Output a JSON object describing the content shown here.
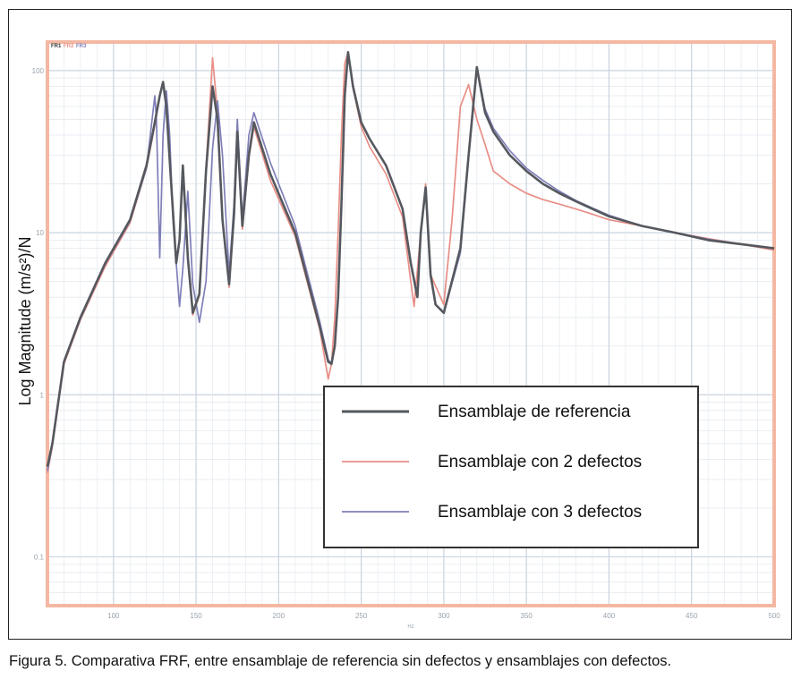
{
  "caption": "Figura 5. Comparativa FRF, entre ensamblaje de referencia sin defectos y ensamblajes con defectos.",
  "chart_data": {
    "type": "line",
    "ylabel": "Log Magnitude (m/s²)/N",
    "xlabel": "Hz",
    "yscale": "log",
    "xlim": [
      60,
      500
    ],
    "ylim": [
      0.05,
      150
    ],
    "x_ticks": [
      "100",
      "150",
      "200",
      "250",
      "300",
      "350",
      "400",
      "450",
      "500"
    ],
    "y_ticks": [
      "100",
      "10",
      "1",
      "0.1"
    ],
    "top_marks": [
      "FR1",
      "FR2",
      "FR3"
    ],
    "grid": true,
    "legend_position": "lower-right",
    "colors": {
      "frame": "#f4b7a2",
      "grid_major": "#c9d3de",
      "grid_minor": "#e4e9ef",
      "reference": "#55585e",
      "two_defects": "#e88e86",
      "three_defects": "#7f7fb8"
    },
    "series": [
      {
        "name": "Ensamblaje de referencia",
        "color": "#55585e",
        "x": [
          60,
          63,
          70,
          80,
          95,
          110,
          120,
          125,
          128,
          130,
          132,
          134,
          138,
          140,
          142,
          145,
          148,
          152,
          156,
          160,
          163,
          166,
          170,
          173,
          175,
          178,
          182,
          185,
          195,
          210,
          225,
          230,
          232,
          234,
          236,
          238,
          240,
          242,
          245,
          250,
          255,
          265,
          275,
          280,
          284,
          286,
          289,
          292,
          295,
          300,
          310,
          315,
          320,
          325,
          330,
          340,
          350,
          360,
          370,
          380,
          390,
          400,
          420,
          440,
          460,
          480,
          500
        ],
        "y": [
          0.36,
          0.5,
          1.6,
          3.0,
          6.5,
          12,
          26,
          48,
          70,
          85,
          60,
          28,
          6.5,
          9,
          26,
          7,
          3.2,
          4.2,
          24,
          80,
          50,
          12,
          4.8,
          13,
          42,
          11,
          30,
          48,
          23,
          10,
          2.6,
          1.6,
          1.55,
          2,
          4,
          15,
          70,
          130,
          80,
          48,
          38,
          26,
          14,
          6.5,
          4,
          10,
          19,
          5.5,
          3.6,
          3.2,
          8,
          30,
          105,
          55,
          42,
          30,
          24,
          20,
          17.5,
          15.6,
          14,
          12.6,
          11,
          10,
          9,
          8.5,
          8
        ]
      },
      {
        "name": "Ensamblaje con 2 defectos",
        "color": "#e88e86",
        "x": [
          60,
          63,
          70,
          80,
          95,
          110,
          120,
          125,
          128,
          130,
          132,
          134,
          138,
          140,
          142,
          145,
          148,
          152,
          156,
          160,
          163,
          166,
          170,
          173,
          175,
          178,
          182,
          185,
          195,
          210,
          225,
          230,
          232,
          234,
          236,
          238,
          240,
          242,
          245,
          250,
          255,
          265,
          275,
          280,
          282,
          286,
          289,
          292,
          300,
          305,
          310,
          315,
          320,
          325,
          330,
          340,
          350,
          360,
          370,
          380,
          390,
          400,
          420,
          440,
          460,
          480,
          500
        ],
        "y": [
          0.33,
          0.48,
          1.55,
          2.9,
          6.2,
          11.5,
          25,
          46,
          70,
          85,
          60,
          28,
          6.3,
          9,
          26,
          7,
          3.1,
          4.1,
          25,
          120,
          55,
          12,
          4.6,
          13,
          40,
          10.5,
          29,
          45,
          21,
          9.5,
          2.5,
          1.25,
          1.55,
          3,
          10,
          40,
          110,
          130,
          78,
          45,
          34,
          23,
          12.5,
          5,
          3.5,
          10,
          20,
          5.5,
          3.6,
          12,
          60,
          82,
          50,
          35,
          24,
          20,
          17.5,
          16,
          15,
          14,
          13,
          12,
          11,
          10,
          9.2,
          8.5,
          7.8
        ]
      },
      {
        "name": "Ensamblaje con 3 defectos",
        "color": "#7f7fb8",
        "x": [
          60,
          63,
          70,
          80,
          95,
          110,
          120,
          125,
          126,
          128,
          130,
          132,
          134,
          136,
          140,
          142,
          145,
          148,
          152,
          156,
          160,
          163,
          166,
          170,
          173,
          175,
          178,
          182,
          185,
          195,
          210,
          225,
          230,
          232,
          234,
          236,
          238,
          240,
          242,
          245,
          250,
          255,
          265,
          275,
          280,
          284,
          286,
          289,
          292,
          295,
          300,
          310,
          315,
          320,
          325,
          330,
          340,
          350,
          360,
          370,
          380,
          390,
          400,
          420,
          440,
          460,
          480,
          500
        ],
        "y": [
          0.34,
          0.49,
          1.58,
          2.95,
          6.4,
          11.8,
          25,
          70,
          50,
          7,
          40,
          75,
          40,
          12,
          3.5,
          6,
          18,
          4.8,
          2.8,
          5,
          33,
          65,
          30,
          5.5,
          15,
          50,
          12,
          40,
          55,
          27,
          11,
          2.8,
          1.65,
          1.55,
          2,
          4,
          15,
          68,
          128,
          80,
          48,
          38,
          26,
          14,
          6.5,
          4,
          10,
          18,
          5.5,
          3.6,
          3.2,
          7.5,
          29,
          105,
          58,
          44,
          32,
          25,
          21,
          18,
          15.8,
          14.2,
          12.8,
          11,
          10,
          9.1,
          8.5,
          8
        ]
      }
    ]
  }
}
